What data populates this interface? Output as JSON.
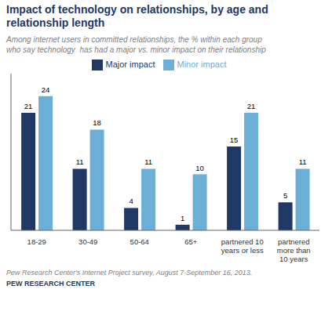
{
  "chart_data": {
    "type": "bar",
    "title": "Impact of technology on relationships, by age and\nrelationship length",
    "subtitle": "Among internet users in committed relationships, the % within each group\nwho say technology  has had a major vs. minor impact on their relationship",
    "categories": [
      "18-29",
      "30-49",
      "50-64",
      "65+",
      "partnered 10\nyears or less",
      "partnered\nmore than\n10 years"
    ],
    "series": [
      {
        "name": "Major impact",
        "color": "#1F3864",
        "values": [
          21,
          11,
          4,
          1,
          15,
          5
        ]
      },
      {
        "name": "Minor impact",
        "color": "#6BAED6",
        "values": [
          24,
          18,
          11,
          10,
          21,
          11
        ]
      }
    ],
    "ylim": [
      0,
      28
    ],
    "grid": false,
    "legend": "top",
    "data_labels": true,
    "tick_labels": "x",
    "annotations": [
      "Pew Research Center's Internet Project survey, August 7-September 16, 2013.",
      "PEW RESEARCH CENTER"
    ]
  }
}
